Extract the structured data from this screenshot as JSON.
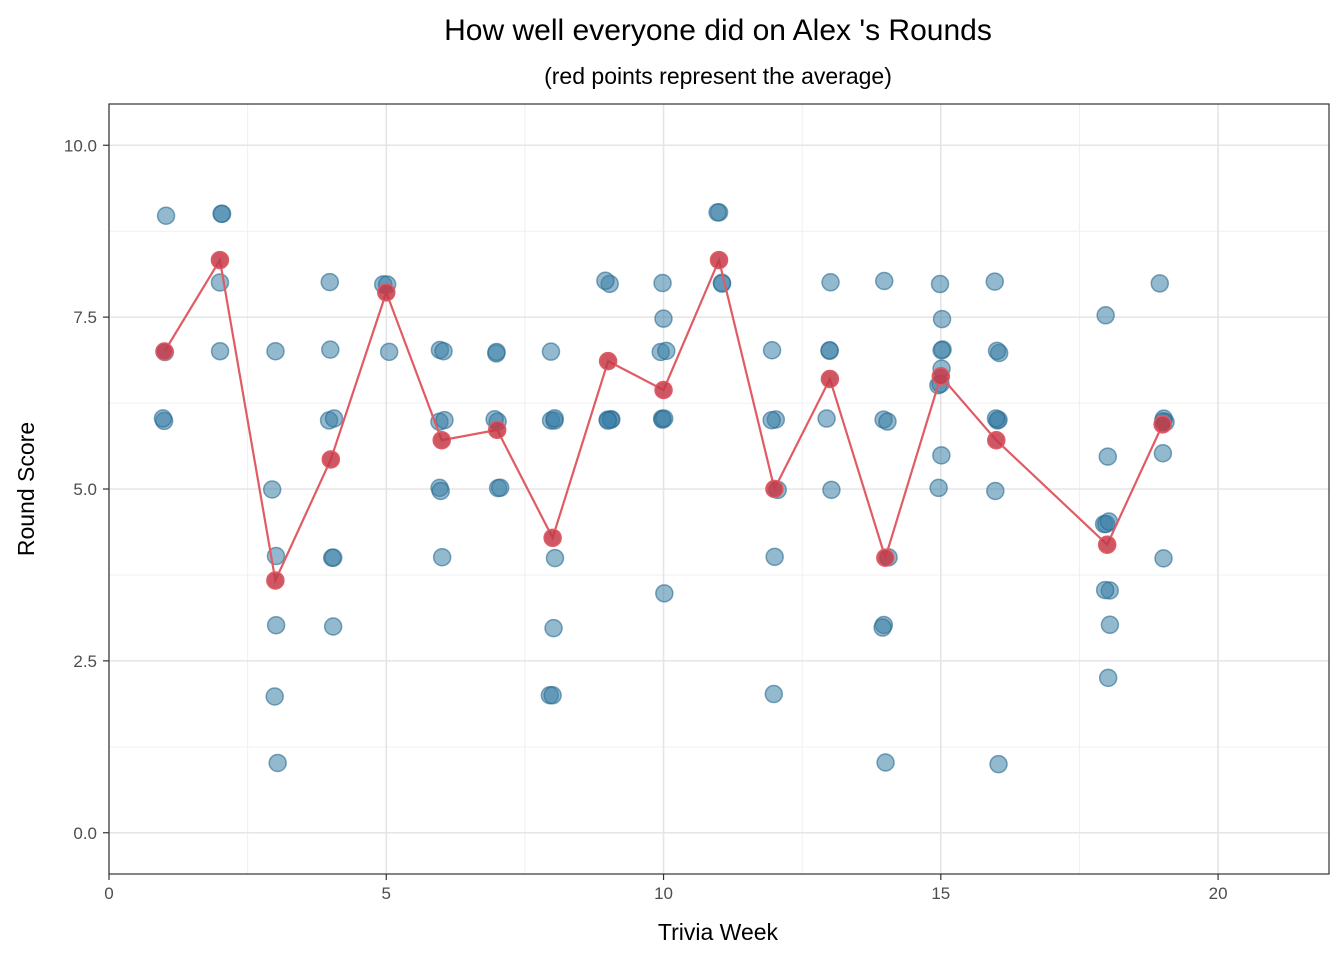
{
  "chart_data": {
    "type": "scatter",
    "title": "How well everyone did on Alex 's Rounds",
    "subtitle": "(red points represent the average)",
    "xlabel": "Trivia Week",
    "ylabel": "Round Score",
    "xlim": [
      0,
      22
    ],
    "ylim": [
      -0.6,
      10.6
    ],
    "x_ticks": [
      0,
      5,
      10,
      15,
      20
    ],
    "x_tick_labels": [
      "0",
      "5",
      "10",
      "15",
      "20"
    ],
    "y_ticks": [
      0,
      2.5,
      5,
      7.5,
      10
    ],
    "y_tick_labels": [
      "0.0",
      "2.5",
      "5.0",
      "7.5",
      "10.0"
    ],
    "grid": true,
    "legend": "none",
    "colors": {
      "scores": "#3a7fa8",
      "average": "#e05b64",
      "average_fill": "#c43a48"
    },
    "series": [
      {
        "role": "individual scores",
        "x": [
          1,
          1,
          1,
          1,
          2,
          2,
          2,
          2,
          3,
          3,
          3,
          3,
          3,
          3,
          4,
          4,
          4,
          4,
          4,
          4,
          4,
          5,
          5,
          5,
          6,
          6,
          6,
          6,
          6,
          6,
          6,
          7,
          7,
          7,
          7,
          7,
          7,
          8,
          8,
          8,
          8,
          8,
          8,
          8,
          8,
          9,
          9,
          9,
          9,
          9,
          9,
          10,
          10,
          10,
          10,
          10,
          10,
          10,
          10,
          11,
          11,
          11,
          11,
          12,
          12,
          12,
          12,
          12,
          12,
          13,
          13,
          13,
          13,
          13,
          14,
          14,
          14,
          14,
          14,
          14,
          14,
          15,
          15,
          15,
          15,
          15,
          15,
          15,
          15,
          15,
          16,
          16,
          16,
          16,
          16,
          16,
          16,
          16,
          18,
          18,
          18,
          18,
          18,
          18,
          18,
          18,
          18,
          19,
          19,
          19,
          19,
          19,
          19
        ],
        "y": [
          9,
          7,
          6,
          6,
          9,
          9,
          8,
          7,
          7,
          5,
          4,
          3,
          2,
          1,
          8,
          7,
          6,
          6,
          4,
          4,
          3,
          8,
          8,
          7,
          7,
          7,
          6,
          6,
          5,
          5,
          4,
          7,
          7,
          6,
          6,
          5,
          5,
          7,
          6,
          6,
          4,
          3,
          2,
          2,
          6,
          8,
          8,
          6,
          6,
          6,
          6,
          8,
          7.5,
          7,
          7,
          6,
          6,
          3.5,
          6,
          9,
          9,
          8,
          8,
          7,
          6,
          6,
          5,
          4,
          2,
          8,
          7,
          7,
          6,
          5,
          8,
          6,
          6,
          4,
          3,
          3,
          1,
          8,
          7.5,
          7,
          7,
          6.75,
          6.5,
          6.5,
          5.5,
          5,
          8,
          7,
          7,
          6,
          6,
          5,
          1,
          6,
          7.5,
          5.5,
          4.5,
          4.5,
          3.5,
          3.5,
          3,
          2.25,
          4.5,
          8,
          6,
          6,
          6,
          5.5,
          4
        ]
      },
      {
        "role": "average",
        "x": [
          1,
          2,
          3,
          4,
          5,
          6,
          7,
          8,
          9,
          10,
          11,
          12,
          13,
          14,
          15,
          16,
          18,
          19
        ],
        "y": [
          7,
          8.33,
          3.67,
          5.43,
          7.86,
          5.71,
          5.86,
          4.29,
          6.86,
          6.44,
          8.33,
          5,
          6.6,
          4,
          6.64,
          5.71,
          4.19,
          5.94
        ]
      }
    ]
  }
}
